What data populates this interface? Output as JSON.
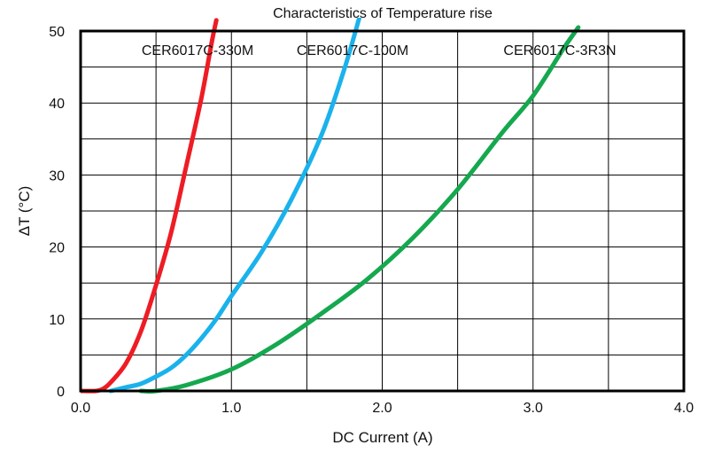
{
  "chart_data": {
    "type": "line",
    "title": "Characteristics of Temperature rise",
    "xlabel": "DC Current (A)",
    "ylabel": "ΔT (°C)",
    "xlim": [
      0.0,
      4.0
    ],
    "ylim": [
      0,
      50
    ],
    "x_ticks": [
      0.0,
      1.0,
      2.0,
      3.0,
      4.0
    ],
    "x_tick_labels": [
      "0.0",
      "1.0",
      "2.0",
      "3.0",
      "4.0"
    ],
    "y_ticks": [
      0,
      10,
      20,
      30,
      40,
      50
    ],
    "y_tick_labels": [
      "0",
      "10",
      "20",
      "30",
      "40",
      "50"
    ],
    "x_grid": [
      0.5,
      1.0,
      1.5,
      2.0,
      2.5,
      3.0,
      3.5
    ],
    "y_grid": [
      5,
      10,
      15,
      20,
      25,
      30,
      35,
      40,
      45
    ],
    "grid": true,
    "series": [
      {
        "name": "CER6017C-330M",
        "color": "#ee1c24",
        "x": [
          0.0,
          0.1,
          0.15,
          0.2,
          0.3,
          0.4,
          0.5,
          0.6,
          0.7,
          0.8,
          0.87,
          0.9
        ],
        "y": [
          0.0,
          0.0,
          0.3,
          1.2,
          3.8,
          8.3,
          14.7,
          22.0,
          31.2,
          40.6,
          48.5,
          51.5
        ]
      },
      {
        "name": "CER6017C-100M",
        "color": "#1ab2ec",
        "x": [
          0.2,
          0.3,
          0.4,
          0.5,
          0.6,
          0.7,
          0.8,
          0.9,
          1.0,
          1.2,
          1.4,
          1.6,
          1.75,
          1.85
        ],
        "y": [
          0.0,
          0.5,
          1.0,
          2.0,
          3.2,
          5.0,
          7.3,
          10.0,
          13.2,
          19.3,
          26.7,
          35.7,
          44.8,
          52.0
        ]
      },
      {
        "name": "CER6017C-3R3N",
        "color": "#15a84f",
        "x": [
          0.4,
          0.5,
          0.7,
          1.0,
          1.3,
          1.6,
          1.9,
          2.2,
          2.5,
          2.8,
          3.0,
          3.2,
          3.3
        ],
        "y": [
          0.0,
          0.0,
          0.8,
          3.0,
          6.5,
          10.8,
          15.5,
          21.2,
          28.0,
          36.0,
          41.0,
          47.5,
          50.5
        ]
      }
    ]
  }
}
